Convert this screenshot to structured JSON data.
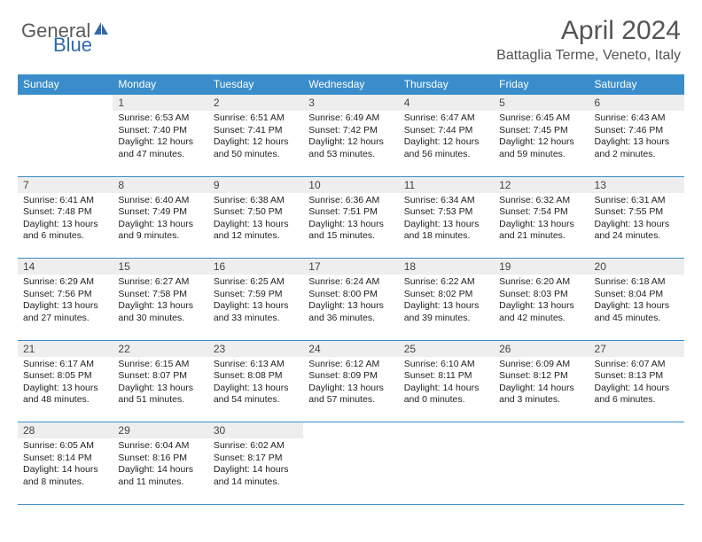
{
  "logo": {
    "text1": "General",
    "text2": "Blue"
  },
  "title": "April 2024",
  "location": "Battaglia Terme, Veneto, Italy",
  "colors": {
    "header_bg": "#3a8dca",
    "header_text": "#ffffff",
    "daynum_bg": "#eeeeee",
    "border": "#3a8dca",
    "logo_gray": "#5a5a5a",
    "logo_blue": "#2f6aa8",
    "title_color": "#555555"
  },
  "weekdays": [
    "Sunday",
    "Monday",
    "Tuesday",
    "Wednesday",
    "Thursday",
    "Friday",
    "Saturday"
  ],
  "weeks": [
    [
      null,
      {
        "n": "1",
        "sr": "6:53 AM",
        "ss": "7:40 PM",
        "dl": "12 hours and 47 minutes."
      },
      {
        "n": "2",
        "sr": "6:51 AM",
        "ss": "7:41 PM",
        "dl": "12 hours and 50 minutes."
      },
      {
        "n": "3",
        "sr": "6:49 AM",
        "ss": "7:42 PM",
        "dl": "12 hours and 53 minutes."
      },
      {
        "n": "4",
        "sr": "6:47 AM",
        "ss": "7:44 PM",
        "dl": "12 hours and 56 minutes."
      },
      {
        "n": "5",
        "sr": "6:45 AM",
        "ss": "7:45 PM",
        "dl": "12 hours and 59 minutes."
      },
      {
        "n": "6",
        "sr": "6:43 AM",
        "ss": "7:46 PM",
        "dl": "13 hours and 2 minutes."
      }
    ],
    [
      {
        "n": "7",
        "sr": "6:41 AM",
        "ss": "7:48 PM",
        "dl": "13 hours and 6 minutes."
      },
      {
        "n": "8",
        "sr": "6:40 AM",
        "ss": "7:49 PM",
        "dl": "13 hours and 9 minutes."
      },
      {
        "n": "9",
        "sr": "6:38 AM",
        "ss": "7:50 PM",
        "dl": "13 hours and 12 minutes."
      },
      {
        "n": "10",
        "sr": "6:36 AM",
        "ss": "7:51 PM",
        "dl": "13 hours and 15 minutes."
      },
      {
        "n": "11",
        "sr": "6:34 AM",
        "ss": "7:53 PM",
        "dl": "13 hours and 18 minutes."
      },
      {
        "n": "12",
        "sr": "6:32 AM",
        "ss": "7:54 PM",
        "dl": "13 hours and 21 minutes."
      },
      {
        "n": "13",
        "sr": "6:31 AM",
        "ss": "7:55 PM",
        "dl": "13 hours and 24 minutes."
      }
    ],
    [
      {
        "n": "14",
        "sr": "6:29 AM",
        "ss": "7:56 PM",
        "dl": "13 hours and 27 minutes."
      },
      {
        "n": "15",
        "sr": "6:27 AM",
        "ss": "7:58 PM",
        "dl": "13 hours and 30 minutes."
      },
      {
        "n": "16",
        "sr": "6:25 AM",
        "ss": "7:59 PM",
        "dl": "13 hours and 33 minutes."
      },
      {
        "n": "17",
        "sr": "6:24 AM",
        "ss": "8:00 PM",
        "dl": "13 hours and 36 minutes."
      },
      {
        "n": "18",
        "sr": "6:22 AM",
        "ss": "8:02 PM",
        "dl": "13 hours and 39 minutes."
      },
      {
        "n": "19",
        "sr": "6:20 AM",
        "ss": "8:03 PM",
        "dl": "13 hours and 42 minutes."
      },
      {
        "n": "20",
        "sr": "6:18 AM",
        "ss": "8:04 PM",
        "dl": "13 hours and 45 minutes."
      }
    ],
    [
      {
        "n": "21",
        "sr": "6:17 AM",
        "ss": "8:05 PM",
        "dl": "13 hours and 48 minutes."
      },
      {
        "n": "22",
        "sr": "6:15 AM",
        "ss": "8:07 PM",
        "dl": "13 hours and 51 minutes."
      },
      {
        "n": "23",
        "sr": "6:13 AM",
        "ss": "8:08 PM",
        "dl": "13 hours and 54 minutes."
      },
      {
        "n": "24",
        "sr": "6:12 AM",
        "ss": "8:09 PM",
        "dl": "13 hours and 57 minutes."
      },
      {
        "n": "25",
        "sr": "6:10 AM",
        "ss": "8:11 PM",
        "dl": "14 hours and 0 minutes."
      },
      {
        "n": "26",
        "sr": "6:09 AM",
        "ss": "8:12 PM",
        "dl": "14 hours and 3 minutes."
      },
      {
        "n": "27",
        "sr": "6:07 AM",
        "ss": "8:13 PM",
        "dl": "14 hours and 6 minutes."
      }
    ],
    [
      {
        "n": "28",
        "sr": "6:05 AM",
        "ss": "8:14 PM",
        "dl": "14 hours and 8 minutes."
      },
      {
        "n": "29",
        "sr": "6:04 AM",
        "ss": "8:16 PM",
        "dl": "14 hours and 11 minutes."
      },
      {
        "n": "30",
        "sr": "6:02 AM",
        "ss": "8:17 PM",
        "dl": "14 hours and 14 minutes."
      },
      null,
      null,
      null,
      null
    ]
  ],
  "labels": {
    "sunrise": "Sunrise:",
    "sunset": "Sunset:",
    "daylight": "Daylight:"
  }
}
